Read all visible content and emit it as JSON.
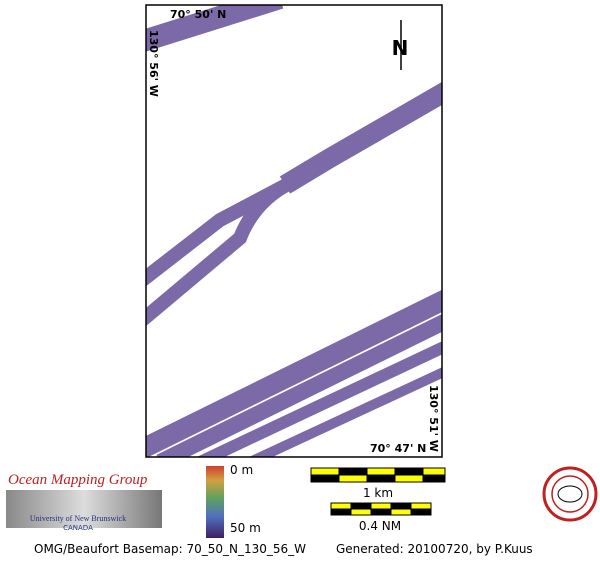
{
  "map": {
    "labels": {
      "top_lat": "70° 50' N",
      "left_lon": "130° 56' W",
      "bottom_lat": "70° 47' N",
      "right_lon": "130° 51' W",
      "north": "N"
    },
    "logo": {
      "title": "Ocean Mapping Group",
      "university": "University of New Brunswick",
      "country": "CANADA"
    },
    "depth_scale": {
      "top": "0 m",
      "bottom": "50 m"
    },
    "scale_bars": {
      "km": "1 km",
      "nm": "0.4 NM"
    },
    "footer": {
      "basemap": "OMG/Beaufort Basemap: 70_50_N_130_56_W",
      "generated": "Generated: 20100720, by P.Kuus"
    }
  }
}
